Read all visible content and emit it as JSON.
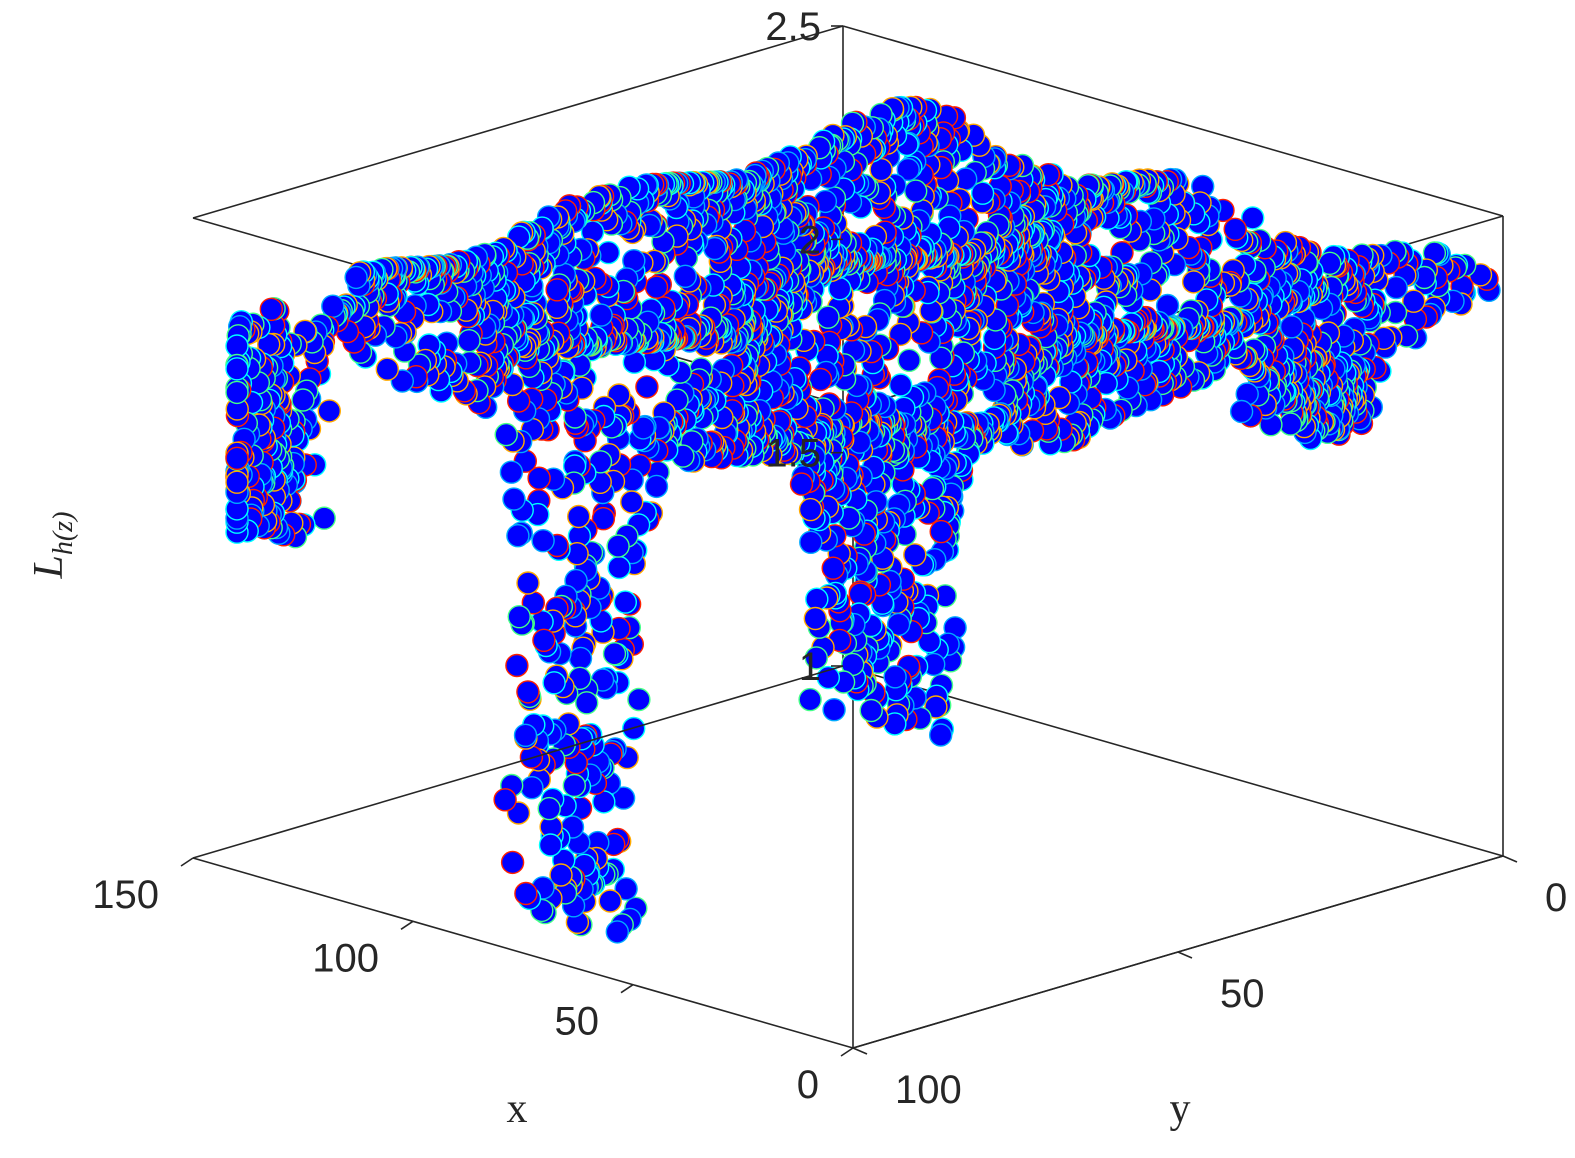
{
  "chart_data": {
    "type": "scatter",
    "subtype": "scatter3d",
    "title": "",
    "xlabel": "x",
    "ylabel": "y",
    "zlabel": "L_{h(z)}",
    "zlabel_display": {
      "main": "L",
      "sub": "h(z)"
    },
    "xlim": [
      0,
      150
    ],
    "ylim": [
      0,
      100
    ],
    "zlim": [
      1,
      2.5
    ],
    "x_ticks": [
      0,
      50,
      100,
      150
    ],
    "y_ticks": [
      0,
      50,
      100
    ],
    "z_ticks": [
      1,
      1.5,
      2,
      2.5
    ],
    "x_tick_labels": [
      "0",
      "50",
      "100",
      "150"
    ],
    "y_tick_labels": [
      "0",
      "50",
      "100"
    ],
    "z_tick_labels": [
      "1",
      "1.5",
      "2",
      "2.5"
    ],
    "grid": false,
    "box": true,
    "marker": "filled circle",
    "marker_fill_color": "#0000ff",
    "marker_edge_colors": [
      "#00aaff",
      "#ff2200",
      "#ffaa00",
      "#00ffff",
      "#44ff88"
    ],
    "description_of_data": "surface of points near z = 2.3 over x in [0,140], y in [0,100]; with downward dips reaching about 1.05 near x≈70, y≈95 and about 1.55 near x≈30, y≈75 and about 1.8 near x≈140, y≈98",
    "surface_level": 2.3,
    "dips": [
      {
        "x": 70,
        "y": 95,
        "min_z": 1.05
      },
      {
        "x": 30,
        "y": 75,
        "min_z": 1.55
      },
      {
        "x": 140,
        "y": 98,
        "min_z": 1.78
      },
      {
        "x": 5,
        "y": 25,
        "min_z": 2.1
      }
    ]
  }
}
